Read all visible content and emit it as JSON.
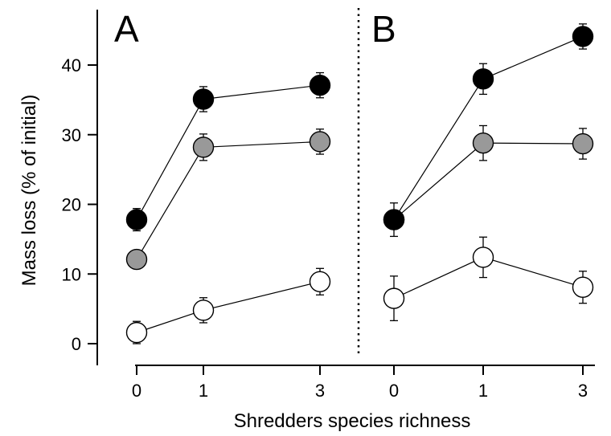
{
  "chart_data": {
    "type": "scatter",
    "xlabel": "Shredders species richness",
    "ylabel": "Mass loss (% of initial)",
    "ylim": [
      -2,
      48
    ],
    "yticks": [
      0,
      10,
      20,
      30,
      40
    ],
    "categories": [
      "0",
      "1",
      "3"
    ],
    "colors": {
      "black": "#000000",
      "grey": "#999999",
      "white": "#ffffff"
    },
    "panels": [
      {
        "label": "A",
        "series": [
          {
            "fill": "black",
            "values": [
              17.8,
              35.1,
              37.1
            ],
            "errors": [
              1.6,
              1.8,
              1.8
            ]
          },
          {
            "fill": "grey",
            "values": [
              12.1,
              28.2,
              29.0
            ],
            "errors": [
              0.0,
              1.9,
              1.8
            ]
          },
          {
            "fill": "white",
            "values": [
              1.6,
              4.8,
              8.9
            ],
            "errors": [
              1.6,
              1.8,
              1.9
            ]
          }
        ]
      },
      {
        "label": "B",
        "series": [
          {
            "fill": "black",
            "values": [
              17.8,
              38.0,
              44.1
            ],
            "errors": [
              2.4,
              2.2,
              1.8
            ]
          },
          {
            "fill": "grey",
            "values": [
              17.8,
              28.8,
              28.7
            ],
            "errors": [
              0.0,
              2.5,
              2.2
            ]
          },
          {
            "fill": "white",
            "values": [
              6.5,
              12.4,
              8.1
            ],
            "errors": [
              3.2,
              2.9,
              2.3
            ]
          }
        ]
      }
    ]
  }
}
